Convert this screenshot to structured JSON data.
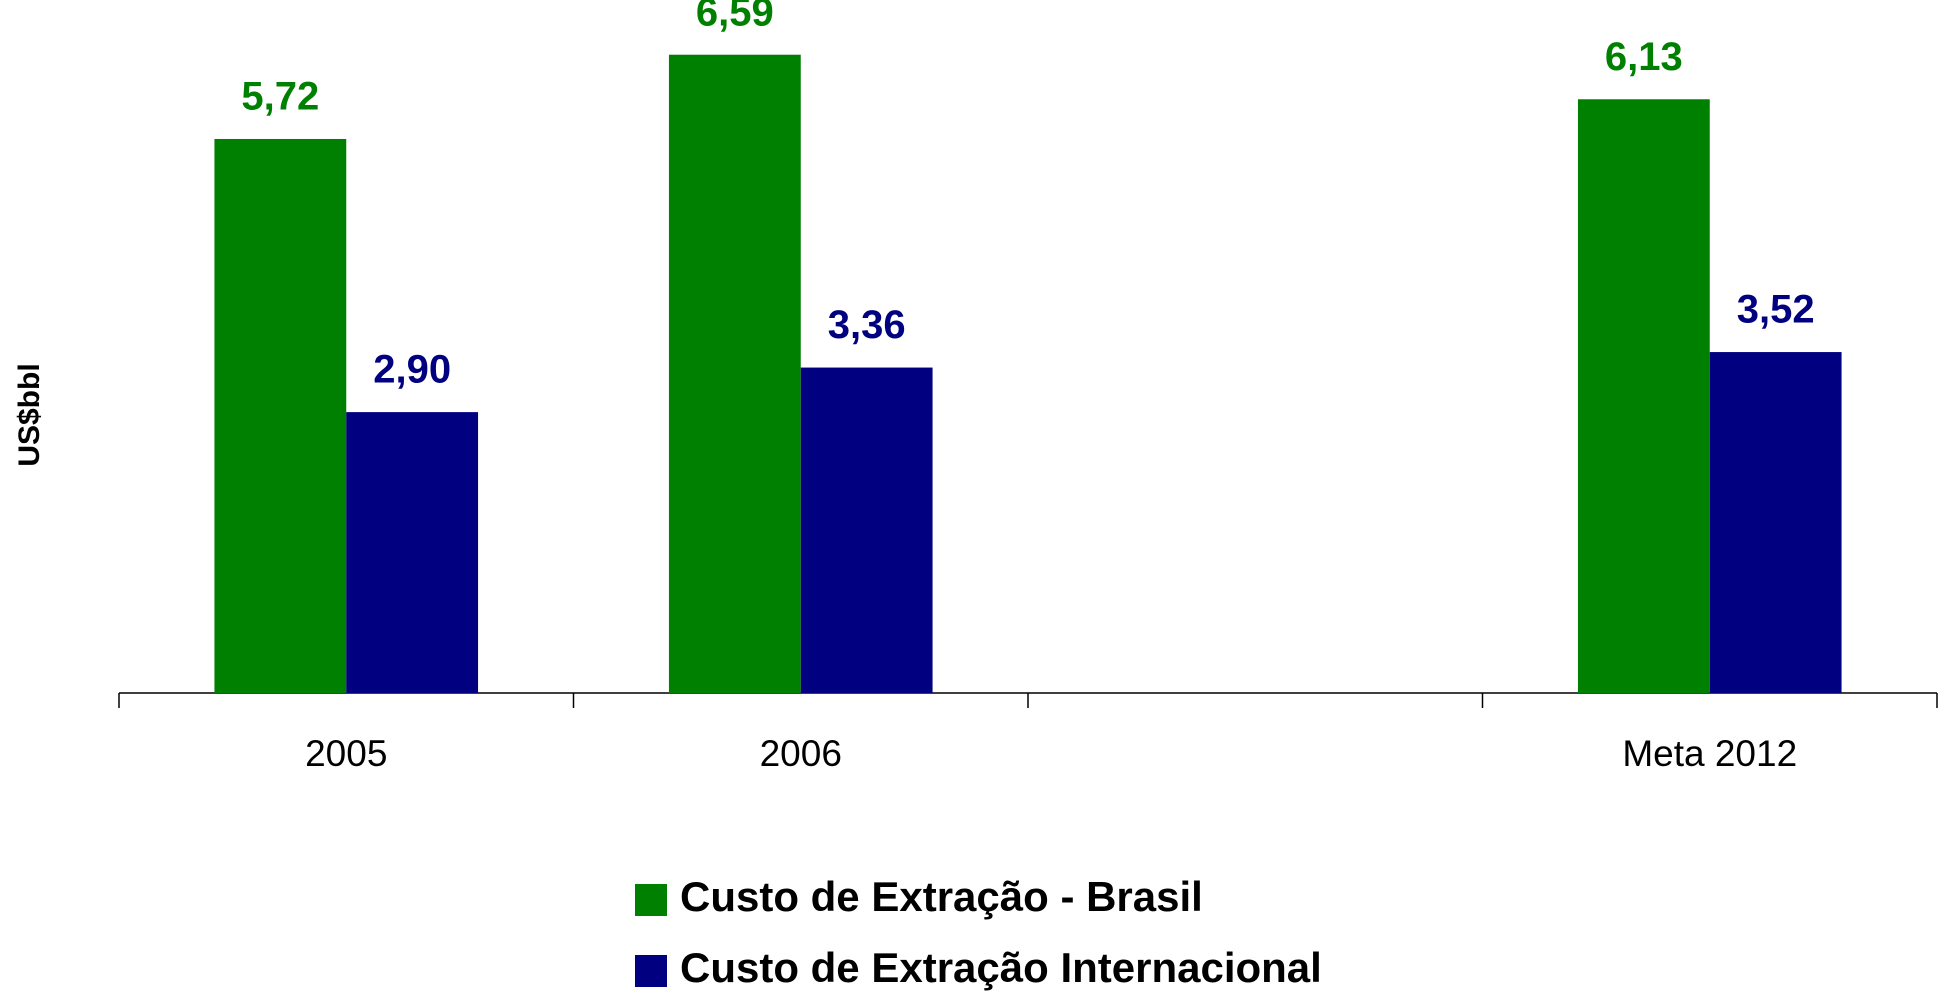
{
  "chart_data": {
    "type": "bar",
    "categories": [
      "2005",
      "2006",
      null,
      "Meta 2012"
    ],
    "series": [
      {
        "name": "Custo de Extração - Brasil",
        "color": "#008000",
        "values": [
          5.72,
          6.59,
          null,
          6.13
        ],
        "value_labels": [
          "5,72",
          "6,59",
          null,
          "6,13"
        ]
      },
      {
        "name": "Custo de Extração Internacional",
        "color": "#000080",
        "values": [
          2.9,
          3.36,
          null,
          3.52
        ],
        "value_labels": [
          "2,90",
          "3,36",
          null,
          "3,52"
        ]
      }
    ],
    "y_label": "US$bbl",
    "ylim": [
      0,
      7
    ],
    "legend": "bottom"
  }
}
